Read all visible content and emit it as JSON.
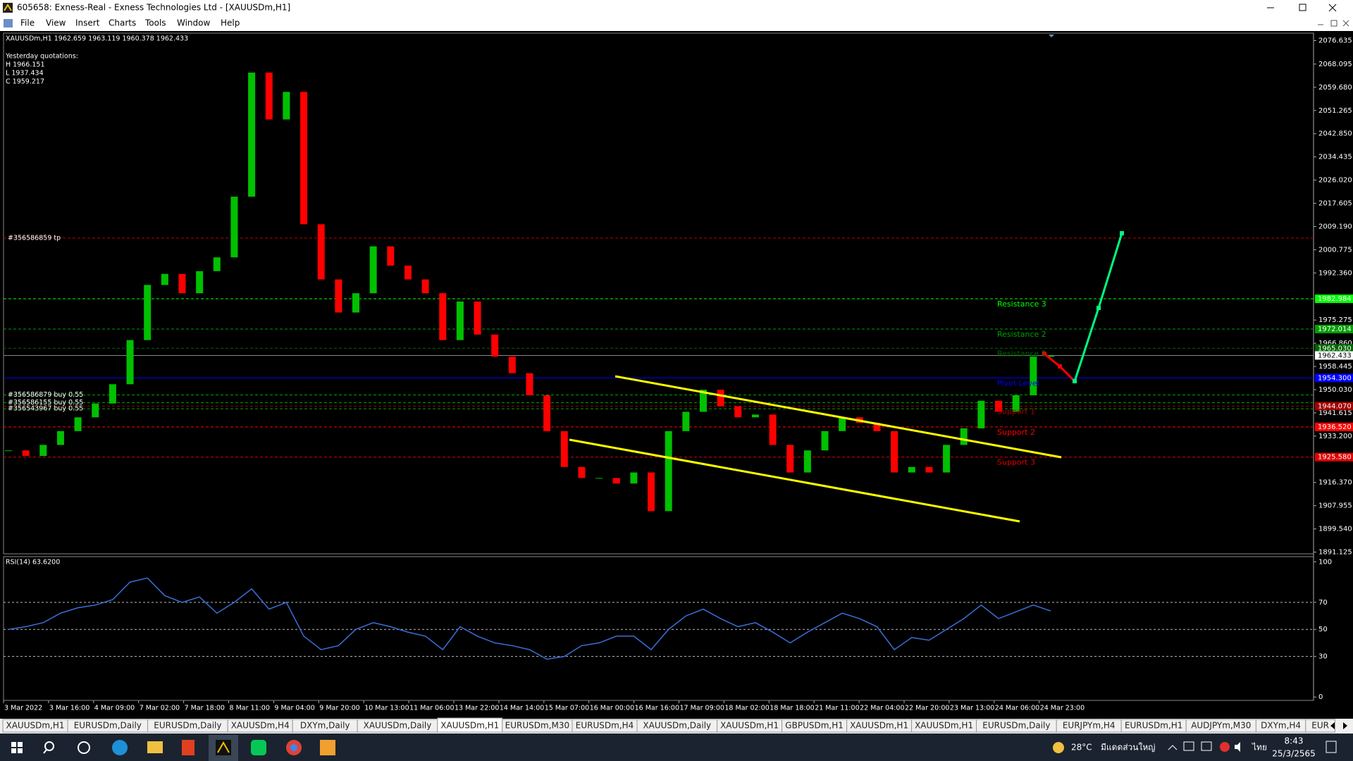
{
  "window": {
    "title": "605658: Exness-Real - Exness Technologies Ltd - [XAUUSDm,H1]",
    "menu": [
      "File",
      "View",
      "Insert",
      "Charts",
      "Tools",
      "Window",
      "Help"
    ]
  },
  "chart_data": {
    "type": "candlestick",
    "info": "XAUUSDm,H1  1962.659 1963.119 1960.378 1962.433",
    "yesterday": [
      "Yesterday quotations:",
      "H 1966.151",
      "L 1937.434",
      "C 1959.217"
    ],
    "up_color": "#00c000",
    "down_color": "#ff0000",
    "close": [
      1928,
      1926,
      1930,
      1935,
      1940,
      1945,
      1952,
      1968,
      1988,
      1992,
      1985,
      1993,
      1998,
      2020,
      2065,
      2048,
      2058,
      2010,
      1990,
      1978,
      1985,
      2002,
      1995,
      1990,
      1985,
      1968,
      1982,
      1970,
      1962,
      1956,
      1948,
      1935,
      1922,
      1918,
      1918,
      1916,
      1920,
      1906,
      1935,
      1942,
      1950,
      1944,
      1940,
      1941,
      1930,
      1920,
      1928,
      1935,
      1940,
      1938,
      1935,
      1920,
      1922,
      1920,
      1930,
      1936,
      1946,
      1942,
      1948,
      1962,
      1962.433
    ],
    "ylim": [
      1890.5,
      2078.8
    ],
    "yticks": [
      2076.635,
      2068.095,
      {
        "value": 2059.68,
        "label": "2059.680"
      },
      2051.265,
      {
        "value": 2042.85,
        "label": "2042.850"
      },
      2034.435,
      {
        "value": 2026.02,
        "label": "2026.020"
      },
      2017.605,
      {
        "value": 2009.19,
        "label": "2009.190"
      },
      2000.775,
      {
        "value": 1992.36,
        "label": "1992.360"
      },
      1975.275,
      {
        "value": 1966.86,
        "label": "1966.860"
      },
      1958.445,
      {
        "value": 1950.03,
        "label": "1950.030"
      },
      1941.615,
      {
        "value": 1933.2,
        "label": "1933.200"
      },
      {
        "value": 1916.37,
        "label": "1916.370"
      },
      1907.955,
      {
        "value": 1899.54,
        "label": "1899.540"
      },
      1891.125
    ],
    "current": 1962.433,
    "time_labels": [
      "3 Mar 2022",
      "3 Mar 16:00",
      "4 Mar 09:00",
      "7 Mar 02:00",
      "7 Mar 18:00",
      "8 Mar 11:00",
      "9 Mar 04:00",
      "9 Mar 20:00",
      "10 Mar 13:00",
      "11 Mar 06:00",
      "13 Mar 22:00",
      "14 Mar 14:00",
      "15 Mar 07:00",
      "16 Mar 00:00",
      "16 Mar 16:00",
      "17 Mar 09:00",
      "18 Mar 02:00",
      "18 Mar 18:00",
      "21 Mar 11:00",
      "22 Mar 04:00",
      "22 Mar 20:00",
      "23 Mar 13:00",
      "24 Mar 06:00",
      "24 Mar 23:00"
    ],
    "levels": [
      {
        "text": "Resistance 3",
        "value": 1982.984,
        "price_label": "1982.984",
        "color": "#00ff00",
        "style": "dashed"
      },
      {
        "text": "Resistance 2",
        "value": 1972.014,
        "price_label": "1972.014",
        "color": "#00a000",
        "style": "dashed"
      },
      {
        "text": "Resistance 1",
        "value": 1965.03,
        "price_label": "1965.030",
        "color": "#006400",
        "style": "dashed"
      },
      {
        "text": "Pivot Level",
        "value": 1954.3,
        "price_label": "1954.300",
        "color": "#0000ff",
        "style": "solid"
      },
      {
        "text": "Support 1",
        "value": 1944.07,
        "price_label": "1944.070",
        "color": "#a00000",
        "style": "dashed"
      },
      {
        "text": "Support 2",
        "value": 1936.52,
        "price_label": "1936.520",
        "color": "#ff0000",
        "style": "dashed"
      },
      {
        "text": "Support 3",
        "value": 1925.58,
        "price_label": "1925.580",
        "color": "#e00000",
        "style": "dashed"
      }
    ],
    "orders": [
      {
        "text": "#356586859 tp",
        "value": 2005.0,
        "color": "#c00000"
      },
      {
        "text": "#356586879 buy 0.55",
        "value": 1948.1,
        "color": "#00a000"
      },
      {
        "text": "#356586155 buy 0.55",
        "value": 1945.3,
        "color": "#00a000"
      },
      {
        "text": "#356543967 buy 0.55",
        "value": 1943.1,
        "color": "#00a000"
      }
    ],
    "rsi": {
      "label": "RSI(14) 63.6200",
      "color": "#3a6fd8",
      "values": [
        50,
        52,
        55,
        62,
        66,
        68,
        72,
        85,
        88,
        75,
        70,
        74,
        62,
        70,
        80,
        65,
        70,
        45,
        35,
        38,
        50,
        55,
        52,
        48,
        45,
        35,
        52,
        45,
        40,
        38,
        35,
        28,
        30,
        38,
        40,
        45,
        45,
        35,
        50,
        60,
        65,
        58,
        52,
        55,
        48,
        40,
        48,
        55,
        62,
        58,
        52,
        35,
        44,
        42,
        50,
        58,
        68,
        58,
        63,
        68,
        63.62
      ],
      "ylim": [
        -2.5,
        103.8
      ],
      "yticks": [
        100,
        70,
        50,
        30,
        0
      ],
      "levels": [
        70,
        50,
        30
      ]
    }
  },
  "tabs": [
    "XAUUSDm,H1",
    "EURUSDm,Daily",
    "EURUSDm,Daily",
    "XAUUSDm,H4",
    "DXYm,Daily",
    "XAUUSDm,Daily",
    "XAUUSDm,H1",
    "EURUSDm,M30",
    "EURUSDm,H4",
    "XAUUSDm,Daily",
    "XAUUSDm,H1",
    "GBPUSDm,H1",
    "XAUUSDm,H1",
    "XAUUSDm,H1",
    "EURUSDm,Daily",
    "EURJPYm,H4",
    "EURUSDm,H1",
    "AUDJPYm,M30",
    "DXYm,H4",
    "EUR"
  ],
  "active_tab": 6,
  "taskbar": {
    "temperature": "28°C",
    "weather": "มีแดดส่วนใหญ่",
    "language": "ไทย",
    "time": "8:43",
    "date": "25/3/2565"
  }
}
